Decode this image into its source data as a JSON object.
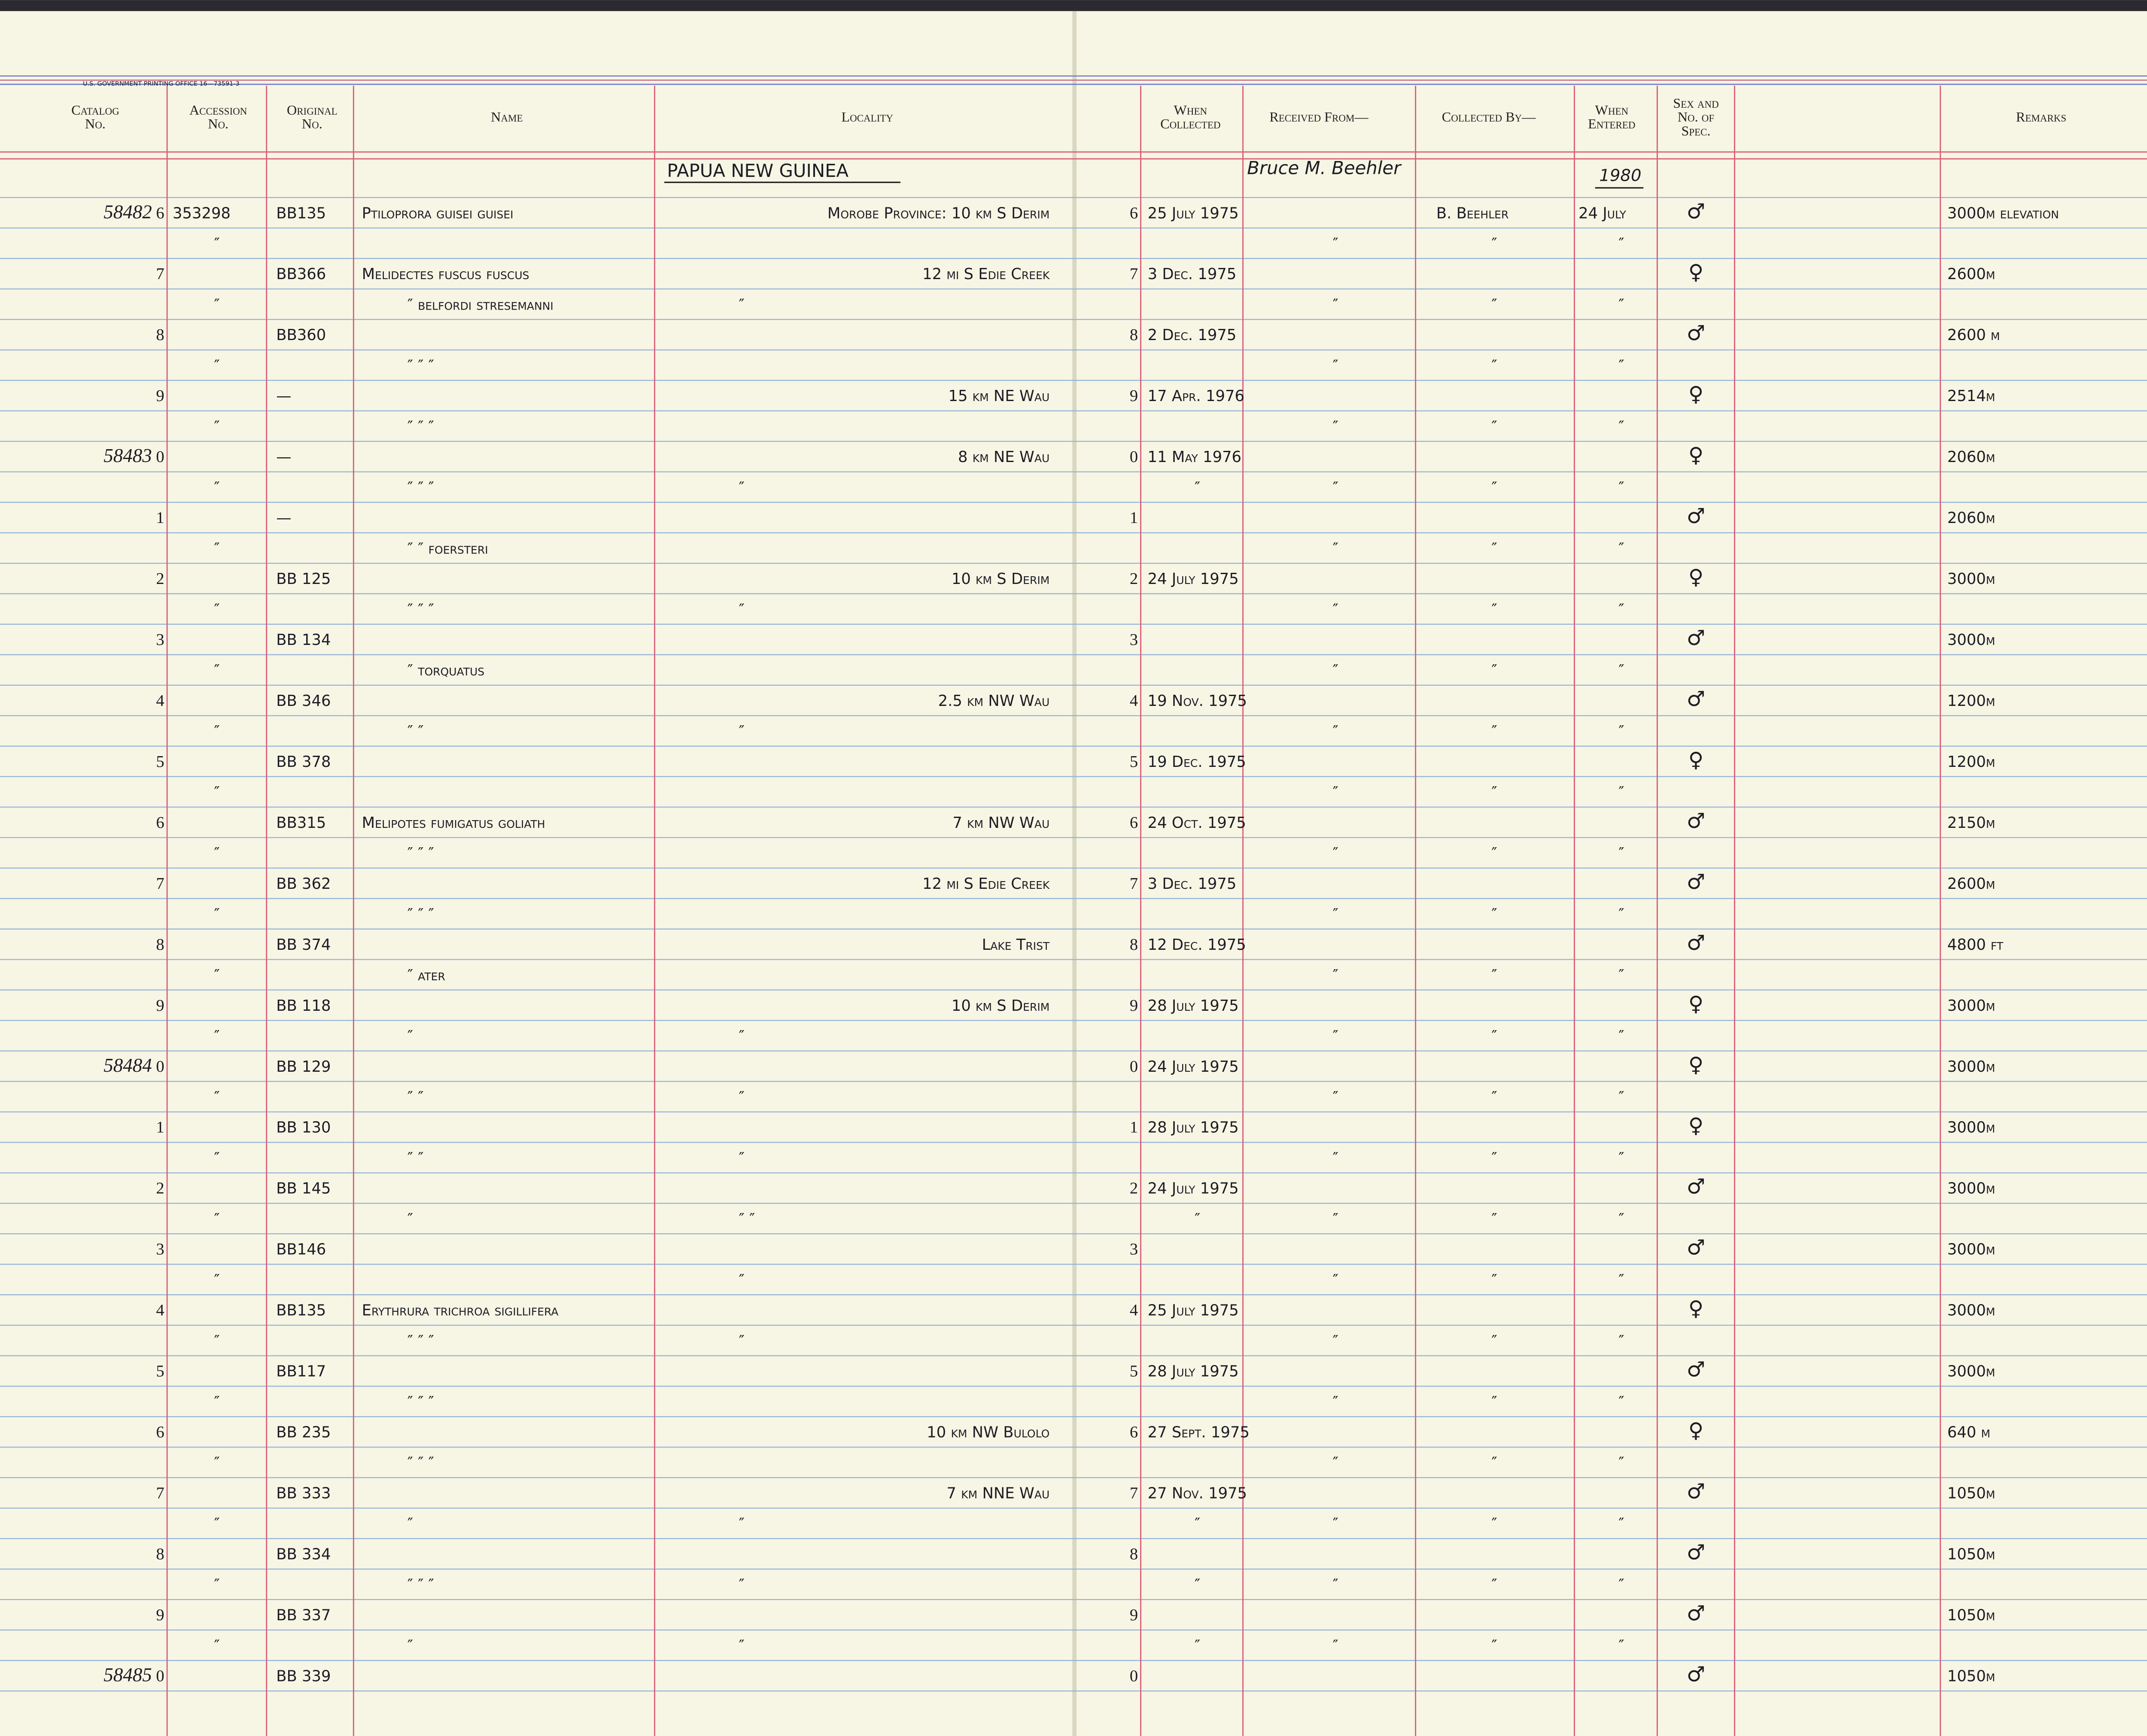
{
  "form_code": "U.S. GOVERNMENT PRINTING OFFICE   16—73591-3",
  "headers": [
    [
      "Catalog",
      "No."
    ],
    [
      "Accession",
      "No."
    ],
    [
      "Original",
      "No."
    ],
    [
      "Name"
    ],
    [
      "Locality"
    ],
    [
      "When",
      "Collected"
    ],
    [
      "Received From—"
    ],
    [
      "Collected By—"
    ],
    [
      "When",
      "Entered"
    ],
    [
      "Sex and",
      "No. of",
      "Spec."
    ],
    [
      "Remarks"
    ]
  ],
  "section": {
    "locality": "PAPUA NEW GUINEA",
    "received_from": "Bruce M. Beehler",
    "entered_year": "1980"
  },
  "rows": [
    [
      "58482",
      "6",
      "353298",
      "BB135",
      "Ptiloprora guisei guisei",
      "Morobe Province:   10 km S Derim",
      "6",
      "25 July 1975",
      null,
      "B. Beehler",
      "24 July",
      "♂",
      "3000m elevation"
    ],
    [
      null,
      "7",
      "″",
      "BB366",
      "Melidectes fuscus fuscus",
      "12 mi S Edie Creek",
      "7",
      "3 Dec. 1975",
      "″",
      "″",
      "″",
      "♀",
      "2600m"
    ],
    [
      null,
      "8",
      "″",
      "BB360",
      "″      belfordi stresemanni",
      "″",
      "8",
      "2 Dec. 1975",
      "″",
      "″",
      "″",
      "♂",
      "2600 m"
    ],
    [
      null,
      "9",
      "″",
      "—",
      "″      ″      ″",
      "15 km NE Wau",
      "9",
      "17 Apr. 1976",
      "″",
      "″",
      "″",
      "♀",
      "2514m"
    ],
    [
      "58483",
      "0",
      "″",
      "—",
      "″      ″      ″",
      "8 km NE Wau",
      "0",
      "11 May 1976",
      "″",
      "″",
      "″",
      "♀",
      "2060m"
    ],
    [
      null,
      "1",
      "″",
      "—",
      "″      ″      ″",
      "″",
      "1",
      "″",
      "″",
      "″",
      "″",
      "♂",
      "2060m"
    ],
    [
      null,
      "2",
      "″",
      "BB 125",
      "″      ″      foersteri",
      "10 km S Derim",
      "2",
      "24 July 1975",
      "″",
      "″",
      "″",
      "♀",
      "3000m"
    ],
    [
      null,
      "3",
      "″",
      "BB 134",
      "″      ″      ″",
      "″",
      "3",
      null,
      "″",
      "″",
      "″",
      "♂",
      "3000m"
    ],
    [
      null,
      "4",
      "″",
      "BB 346",
      "″      torquatus",
      "2.5 km NW Wau",
      "4",
      "19 Nov. 1975",
      "″",
      "″",
      "″",
      "♂",
      "1200m"
    ],
    [
      null,
      "5",
      "″",
      "BB 378",
      "″      ″",
      "″",
      "5",
      "19 Dec. 1975",
      "″",
      "″",
      "″",
      "♀",
      "1200m"
    ],
    [
      null,
      "6",
      "″",
      "BB315",
      "Melipotes fumigatus goliath",
      "7 km NW Wau",
      "6",
      "24 Oct. 1975",
      "″",
      "″",
      "″",
      "♂",
      "2150m"
    ],
    [
      null,
      "7",
      "″",
      "BB 362",
      "″      ″      ″",
      "12 mi S Edie Creek",
      "7",
      "3 Dec. 1975",
      "″",
      "″",
      "″",
      "♂",
      "2600m"
    ],
    [
      null,
      "8",
      "″",
      "BB 374",
      "″      ″      ″",
      "Lake Trist",
      "8",
      "12 Dec. 1975",
      "″",
      "″",
      "″",
      "♂",
      "4800 ft"
    ],
    [
      null,
      "9",
      "″",
      "BB 118",
      "″      ater",
      "10 km S Derim",
      "9",
      "28 July 1975",
      "″",
      "″",
      "″",
      "♀",
      "3000m"
    ],
    [
      "58484",
      "0",
      "″",
      "BB 129",
      "″",
      "″",
      "0",
      "24 July 1975",
      "″",
      "″",
      "″",
      "♀",
      "3000m"
    ],
    [
      null,
      "1",
      "″",
      "BB 130",
      "″      ″",
      "″",
      "1",
      "28 July 1975",
      "″",
      "″",
      "″",
      "♀",
      "3000m"
    ],
    [
      null,
      "2",
      "″",
      "BB 145",
      "″      ″",
      "″",
      "2",
      "24 July 1975",
      "″",
      "″",
      "″",
      "♂",
      "3000m"
    ],
    [
      null,
      "3",
      "″",
      "BB146",
      "″",
      "″      ″",
      "3",
      "″",
      "″",
      "″",
      "″",
      "♂",
      "3000m"
    ],
    [
      null,
      "4",
      "″",
      "BB135",
      "Erythrura trichroa sigillifera",
      "″",
      "4",
      "25 July 1975",
      "″",
      "″",
      "″",
      "♀",
      "3000m"
    ],
    [
      null,
      "5",
      "″",
      "BB117",
      "″      ″      ″",
      "″",
      "5",
      "28 July 1975",
      "″",
      "″",
      "″",
      "♂",
      "3000m"
    ],
    [
      null,
      "6",
      "″",
      "BB 235",
      "″      ″      ″",
      "10 km NW Bulolo",
      "6",
      "27 Sept. 1975",
      "″",
      "″",
      "″",
      "♀",
      "640 m"
    ],
    [
      null,
      "7",
      "″",
      "BB 333",
      "″      ″      ″",
      "7 km NNE Wau",
      "7",
      "27 Nov. 1975",
      "″",
      "″",
      "″",
      "♂",
      "1050m"
    ],
    [
      null,
      "8",
      "″",
      "BB 334",
      "″",
      "″",
      "8",
      "″",
      "″",
      "″",
      "″",
      "♂",
      "1050m"
    ],
    [
      null,
      "9",
      "″",
      "BB 337",
      "″      ″      ″",
      "″",
      "9",
      "″",
      "″",
      "″",
      "″",
      "♂",
      "1050m"
    ],
    [
      "58485",
      "0",
      "″",
      "BB 339",
      "″",
      "″",
      "0",
      "″",
      "″",
      "″",
      "″",
      "♂",
      "1050m"
    ]
  ]
}
